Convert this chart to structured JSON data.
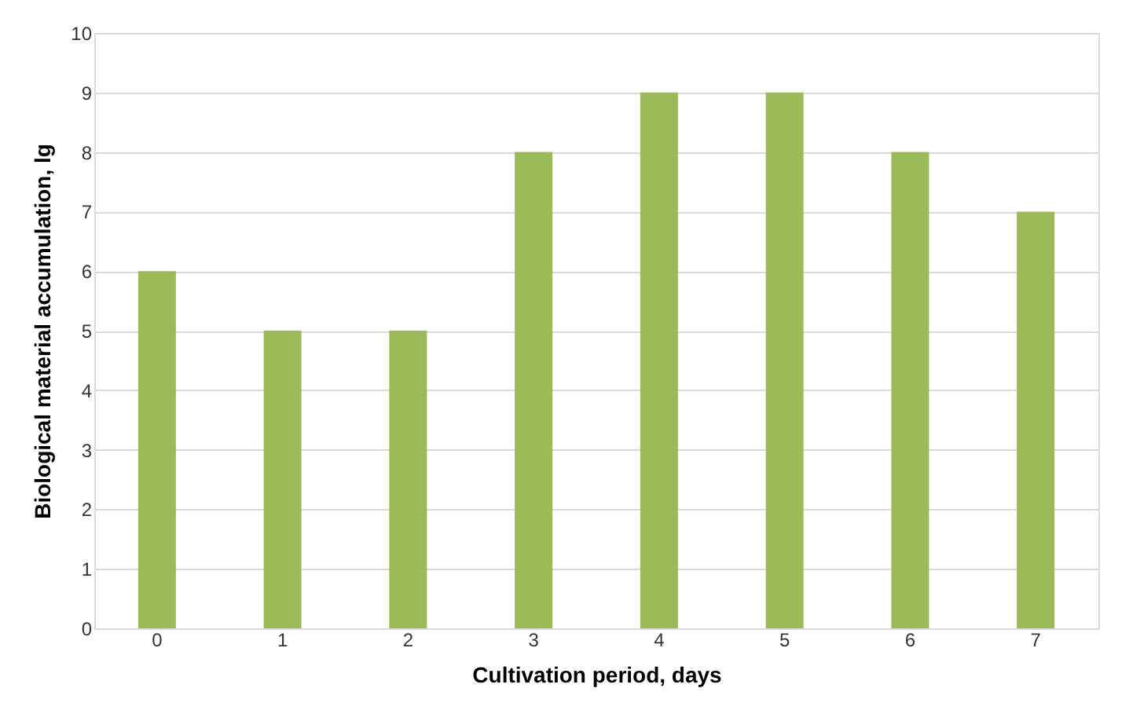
{
  "chart_data": {
    "type": "bar",
    "categories": [
      "0",
      "1",
      "2",
      "3",
      "4",
      "5",
      "6",
      "7"
    ],
    "values": [
      6,
      5,
      5,
      8,
      9,
      9,
      8,
      7
    ],
    "color": "#9bbb59",
    "xlabel": "Cultivation period, days",
    "ylabel": "Biological material accumulation, lg",
    "ylim": [
      0,
      10
    ],
    "yticks": [
      0,
      1,
      2,
      3,
      4,
      5,
      6,
      7,
      8,
      9,
      10
    ],
    "grid": "y"
  }
}
